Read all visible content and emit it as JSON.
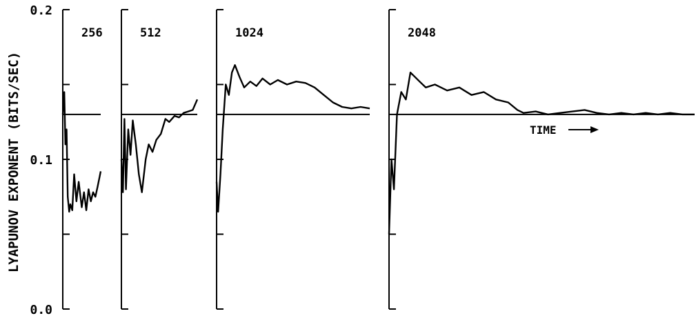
{
  "chart_data": {
    "type": "line",
    "ylabel": "LYAPUNOV EXPONENT (BITS/SEC)",
    "ylim": [
      0.0,
      0.2
    ],
    "ytick_labels": [
      "0.0",
      "0.1",
      "0.2"
    ],
    "yticks": [
      0.0,
      0.05,
      0.1,
      0.15,
      0.2
    ],
    "reference_value": 0.13,
    "time_annotation": "TIME",
    "panels": [
      {
        "label": "256",
        "x": [
          0,
          0.04,
          0.07,
          0.1,
          0.13,
          0.17,
          0.2,
          0.25,
          0.3,
          0.36,
          0.42,
          0.5,
          0.56,
          0.62,
          0.68,
          0.74,
          0.8,
          0.86,
          0.92,
          1.0
        ],
        "y": [
          0.13,
          0.145,
          0.11,
          0.12,
          0.075,
          0.065,
          0.07,
          0.066,
          0.09,
          0.072,
          0.085,
          0.068,
          0.078,
          0.066,
          0.08,
          0.072,
          0.078,
          0.075,
          0.082,
          0.092
        ]
      },
      {
        "label": "512",
        "x": [
          0,
          0.02,
          0.04,
          0.06,
          0.09,
          0.12,
          0.15,
          0.19,
          0.23,
          0.27,
          0.32,
          0.36,
          0.41,
          0.46,
          0.52,
          0.58,
          0.63,
          0.7,
          0.76,
          0.82,
          0.88,
          0.94,
          1.0
        ],
        "y": [
          0.1,
          0.078,
          0.127,
          0.08,
          0.12,
          0.103,
          0.126,
          0.11,
          0.09,
          0.078,
          0.1,
          0.11,
          0.105,
          0.113,
          0.117,
          0.127,
          0.125,
          0.129,
          0.128,
          0.131,
          0.132,
          0.133,
          0.14
        ]
      },
      {
        "label": "1024",
        "x": [
          0,
          0.01,
          0.025,
          0.04,
          0.06,
          0.08,
          0.1,
          0.12,
          0.15,
          0.18,
          0.22,
          0.26,
          0.3,
          0.35,
          0.4,
          0.46,
          0.52,
          0.58,
          0.64,
          0.7,
          0.76,
          0.82,
          0.88,
          0.94,
          1.0
        ],
        "y": [
          0.085,
          0.065,
          0.09,
          0.12,
          0.15,
          0.143,
          0.158,
          0.163,
          0.155,
          0.148,
          0.152,
          0.149,
          0.154,
          0.15,
          0.153,
          0.15,
          0.152,
          0.151,
          0.148,
          0.143,
          0.138,
          0.135,
          0.134,
          0.135,
          0.134
        ]
      },
      {
        "label": "2048",
        "x": [
          0,
          0.008,
          0.016,
          0.026,
          0.04,
          0.055,
          0.07,
          0.085,
          0.1,
          0.12,
          0.15,
          0.19,
          0.23,
          0.27,
          0.31,
          0.35,
          0.39,
          0.42,
          0.44,
          0.48,
          0.52,
          0.56,
          0.6,
          0.64,
          0.68,
          0.72,
          0.76,
          0.8,
          0.84,
          0.88,
          0.92,
          0.96,
          1.0
        ],
        "y": [
          0.05,
          0.1,
          0.08,
          0.13,
          0.145,
          0.14,
          0.158,
          0.155,
          0.152,
          0.148,
          0.15,
          0.146,
          0.148,
          0.143,
          0.145,
          0.14,
          0.138,
          0.133,
          0.131,
          0.132,
          0.13,
          0.131,
          0.132,
          0.133,
          0.131,
          0.13,
          0.131,
          0.13,
          0.131,
          0.13,
          0.131,
          0.13,
          0.13
        ]
      }
    ]
  }
}
